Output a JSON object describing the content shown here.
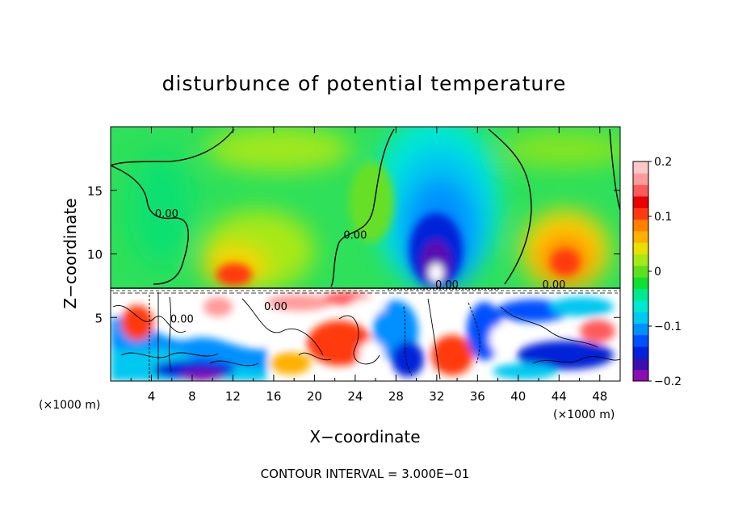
{
  "chart_data": {
    "type": "heatmap",
    "title": "disturbunce of potential temperature",
    "xlabel": "X−coordinate",
    "ylabel": "Z−coordinate",
    "x_unit": "(×1000 m)",
    "y_unit": "(×1000 m)",
    "xlim": [
      0,
      50
    ],
    "ylim": [
      0,
      20
    ],
    "x_ticks": [
      4,
      8,
      12,
      16,
      20,
      24,
      28,
      32,
      36,
      40,
      44,
      48
    ],
    "y_ticks": [
      5,
      10,
      15
    ],
    "footer": "CONTOUR INTERVAL = 3.000E−01",
    "colorbar": {
      "range": [
        -0.2,
        0.2
      ],
      "tick_values": [
        0.2,
        0.1,
        0,
        -0.1,
        -0.2
      ],
      "tick_labels": [
        "0.2",
        "0.1",
        "0",
        "−0.1",
        "−0.2"
      ],
      "colors": [
        "#8a0fb0",
        "#3a0fb0",
        "#0022d8",
        "#0050ff",
        "#0090ff",
        "#00c8f0",
        "#00e8d0",
        "#00e890",
        "#10e030",
        "#60e020",
        "#a8e818",
        "#e8e000",
        "#ffb000",
        "#ff8000",
        "#ff3a10",
        "#e80000",
        "#ff5a5a",
        "#ff9a9a",
        "#ffc8c8"
      ]
    },
    "contour_labels": [
      {
        "text": "0.00",
        "x": 5.5,
        "y": 12.9
      },
      {
        "text": "0.00",
        "x": 24.0,
        "y": 11.2
      },
      {
        "text": "0.00",
        "x": 33.0,
        "y": 7.3
      },
      {
        "text": "0.00",
        "x": 43.5,
        "y": 7.3
      },
      {
        "text": "0.00",
        "x": 16.2,
        "y": 5.6
      },
      {
        "text": "0.00",
        "x": 7.0,
        "y": 4.6
      }
    ],
    "field": {
      "upper_layer": {
        "z_range": [
          7.3,
          20
        ],
        "background_value": 0.01,
        "features": [
          {
            "kind": "negative_anomaly",
            "x": 31.5,
            "z": 9.0,
            "peak": -0.2
          },
          {
            "kind": "positive_anomaly",
            "x": 44.5,
            "z": 9.5,
            "peak": 0.15
          },
          {
            "kind": "positive_anomaly",
            "x": 12.5,
            "z": 8.0,
            "peak": 0.12
          },
          {
            "kind": "positive_anomaly",
            "x": 19.0,
            "z": 11.0,
            "peak": 0.05
          },
          {
            "kind": "negative_anomaly",
            "x": 5.5,
            "z": 12.0,
            "peak": -0.02
          }
        ]
      },
      "lower_layer": {
        "z_range": [
          0,
          7.3
        ],
        "description_values": "turbulent mixed layer, values beyond ±0.2"
      }
    }
  }
}
